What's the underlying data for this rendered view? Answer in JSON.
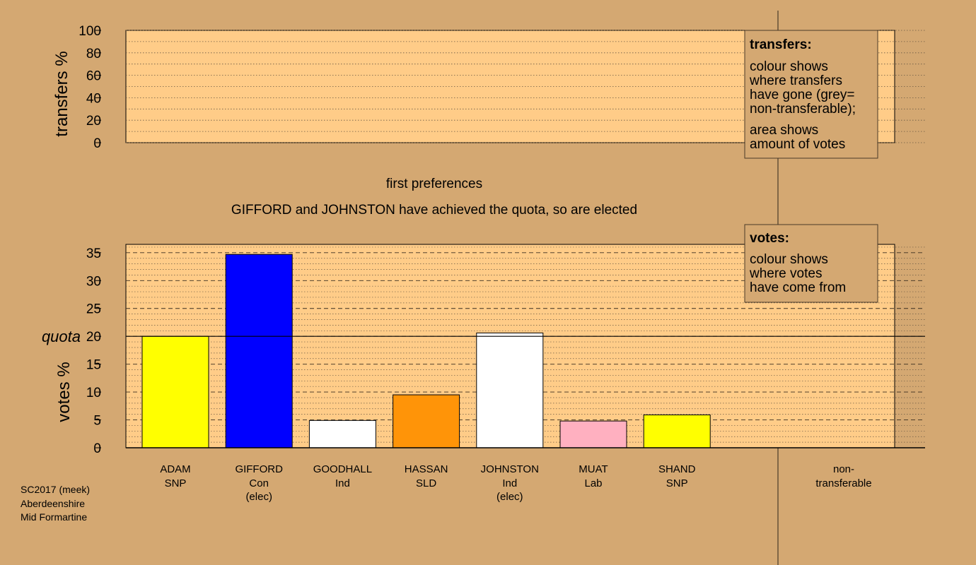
{
  "chart_data": [
    {
      "type": "bar",
      "ylabel": "transfers %",
      "ylim": [
        0,
        100
      ],
      "yticks": [
        0,
        20,
        40,
        60,
        80,
        100
      ],
      "categories": [],
      "values": [],
      "legend": {
        "title": "transfers:",
        "para1": [
          "colour shows",
          "where transfers",
          "have gone (grey=",
          "non-transferable);"
        ],
        "para2": [
          "area shows",
          "amount of votes"
        ]
      }
    },
    {
      "type": "bar",
      "title": "first preferences",
      "subtitle": "GIFFORD and JOHNSTON have achieved the quota, so are elected",
      "ylabel": "votes %",
      "ylim": [
        0,
        36.5
      ],
      "yticks": [
        0,
        5,
        10,
        15,
        20,
        25,
        30,
        35
      ],
      "quota": 20,
      "quota_label": "quota",
      "categories": [
        "ADAM SNP",
        "GIFFORD Con",
        "GOODHALL Ind",
        "HASSAN SLD",
        "JOHNSTON Ind",
        "MUAT Lab",
        "SHAND SNP"
      ],
      "candidates": [
        {
          "name": "ADAM",
          "party": "SNP",
          "note": "",
          "value": 20.0,
          "color": "#ffff00"
        },
        {
          "name": "GIFFORD",
          "party": "Con",
          "note": "(elec)",
          "value": 34.7,
          "color": "#0000ff"
        },
        {
          "name": "GOODHALL",
          "party": "Ind",
          "note": "",
          "value": 4.9,
          "color": "#ffffff"
        },
        {
          "name": "HASSAN",
          "party": "SLD",
          "note": "",
          "value": 9.5,
          "color": "#ff9408"
        },
        {
          "name": "JOHNSTON",
          "party": "Ind",
          "note": "(elec)",
          "value": 20.6,
          "color": "#ffffff"
        },
        {
          "name": "MUAT",
          "party": "Lab",
          "note": "",
          "value": 4.8,
          "color": "#ffb0c0"
        },
        {
          "name": "SHAND",
          "party": "SNP",
          "note": "",
          "value": 5.9,
          "color": "#ffff00"
        }
      ],
      "nontransferable": {
        "label1": "non-",
        "label2": "transferable",
        "value": 0
      },
      "legend": {
        "title": "votes:",
        "para1": [
          "colour shows",
          "where votes",
          "have come from"
        ]
      }
    }
  ],
  "footer": {
    "line1": "SC2017 (meek)",
    "line2": "Aberdeenshire",
    "line3": "Mid Formartine"
  },
  "colors": {
    "background": "#d4a872",
    "plot_area": "#ffcc88",
    "legend_box": "#d4a872"
  }
}
